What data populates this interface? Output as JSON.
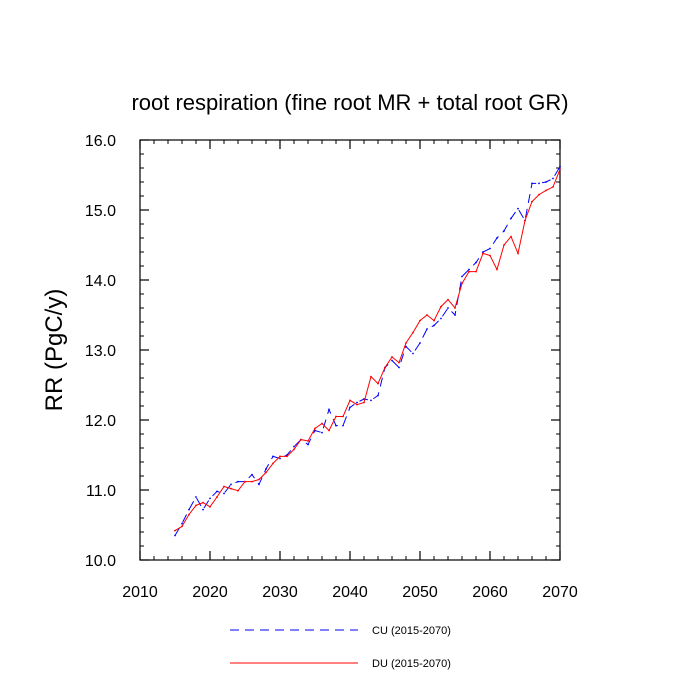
{
  "chart_data": {
    "type": "line",
    "title": "root respiration (fine root MR + total root GR)",
    "xlabel": "",
    "ylabel": "RR  (PgC/y)",
    "xlim": [
      2010,
      2070
    ],
    "ylim": [
      10.0,
      16.0
    ],
    "xticks": [
      2010,
      2020,
      2030,
      2040,
      2050,
      2060,
      2070
    ],
    "xtick_labels": [
      "2010",
      "2020",
      "2030",
      "2040",
      "2050",
      "2060",
      "2070"
    ],
    "yticks": [
      10.0,
      11.0,
      12.0,
      13.0,
      14.0,
      15.0,
      16.0
    ],
    "ytick_labels": [
      "10.0",
      "11.0",
      "12.0",
      "13.0",
      "14.0",
      "15.0",
      "16.0"
    ],
    "x": [
      2015,
      2016,
      2017,
      2018,
      2019,
      2020,
      2021,
      2022,
      2023,
      2024,
      2025,
      2026,
      2027,
      2028,
      2029,
      2030,
      2031,
      2032,
      2033,
      2034,
      2035,
      2036,
      2037,
      2038,
      2039,
      2040,
      2041,
      2042,
      2043,
      2044,
      2045,
      2046,
      2047,
      2048,
      2049,
      2050,
      2051,
      2052,
      2053,
      2054,
      2055,
      2056,
      2057,
      2058,
      2059,
      2060,
      2061,
      2062,
      2063,
      2064,
      2065,
      2066,
      2067,
      2068,
      2069,
      2070
    ],
    "series": [
      {
        "name": "CU (2015-2070)",
        "color": "#0000ff",
        "style": "dashed",
        "values": [
          10.35,
          10.52,
          10.72,
          10.9,
          10.72,
          10.88,
          10.98,
          10.95,
          11.08,
          11.12,
          11.12,
          11.22,
          11.08,
          11.3,
          11.48,
          11.45,
          11.5,
          11.62,
          11.72,
          11.65,
          11.85,
          11.82,
          12.15,
          11.92,
          11.92,
          12.18,
          12.25,
          12.3,
          12.28,
          12.35,
          12.75,
          12.85,
          12.75,
          13.05,
          12.95,
          13.1,
          13.3,
          13.35,
          13.45,
          13.6,
          13.5,
          14.05,
          14.15,
          14.25,
          14.4,
          14.45,
          14.6,
          14.7,
          14.88,
          15.02,
          14.85,
          15.38,
          15.38,
          15.4,
          15.45,
          15.62
        ]
      },
      {
        "name": "DU (2015-2070)",
        "color": "#ff0000",
        "style": "solid",
        "values": [
          10.42,
          10.48,
          10.65,
          10.78,
          10.82,
          10.76,
          10.9,
          11.05,
          11.02,
          10.99,
          11.12,
          11.12,
          11.15,
          11.25,
          11.38,
          11.48,
          11.48,
          11.58,
          11.72,
          11.7,
          11.88,
          11.95,
          11.85,
          12.05,
          12.05,
          12.28,
          12.22,
          12.25,
          12.62,
          12.52,
          12.75,
          12.9,
          12.82,
          13.1,
          13.25,
          13.42,
          13.5,
          13.42,
          13.62,
          13.72,
          13.6,
          13.95,
          14.12,
          14.12,
          14.38,
          14.35,
          14.15,
          14.5,
          14.62,
          14.38,
          14.85,
          15.12,
          15.22,
          15.28,
          15.33,
          15.58
        ]
      }
    ],
    "legend_position": "bottom"
  }
}
